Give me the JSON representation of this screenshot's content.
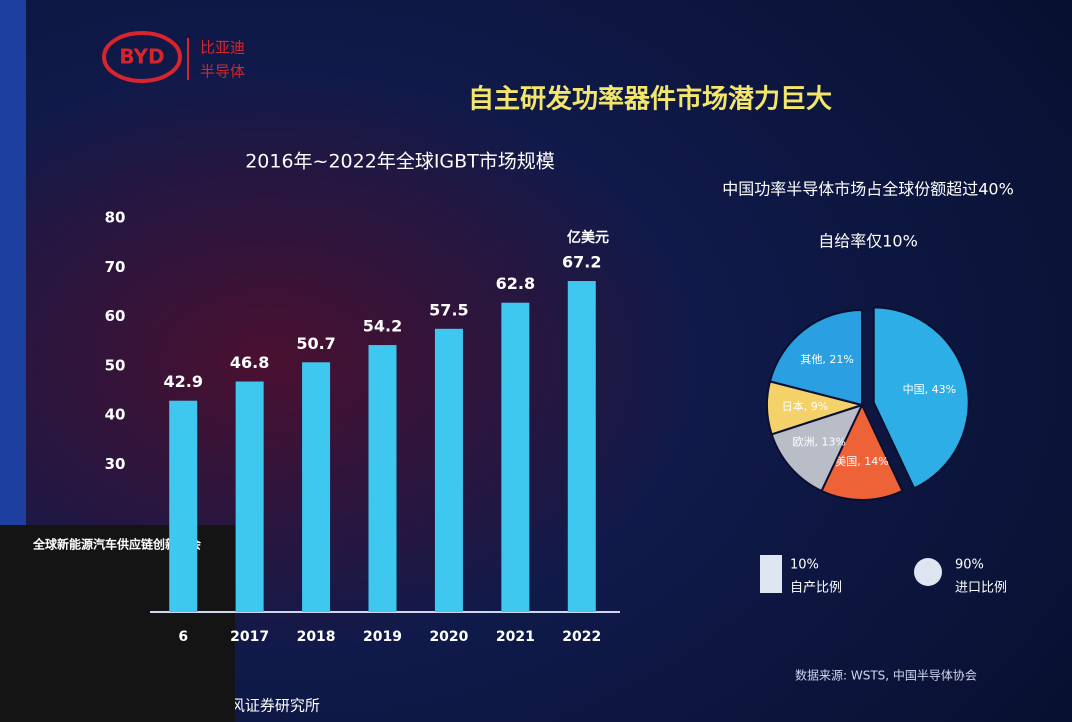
{
  "slide": {
    "title": "自主研发功率器件市场潜力巨大",
    "logo": "BYD",
    "brand_line1": "比亚迪",
    "brand_line2": "半导体",
    "podium": "全球新能源汽车供应链创新大会",
    "left_source": "源: 天风证券研究所",
    "right_source": "数据来源: WSTS, 中国半导体协会",
    "stats": [
      {
        "value": "10%",
        "label": "自产比例"
      },
      {
        "value": "90%",
        "label": "进口比例"
      }
    ]
  },
  "chart_data": [
    {
      "type": "bar",
      "title": "2016年~2022年全球IGBT市场规模",
      "unit": "亿美元",
      "categories": [
        "6",
        "2017",
        "2018",
        "2019",
        "2020",
        "2021",
        "2022"
      ],
      "values": [
        42.9,
        46.8,
        50.7,
        54.2,
        57.5,
        62.8,
        67.2
      ],
      "color": "#3ec8f0",
      "ylim": [
        0,
        80
      ],
      "yticks": [
        30,
        40,
        50,
        60,
        70,
        80
      ]
    },
    {
      "type": "pie",
      "title": "中国功率半导体市场占全球份额超过40%",
      "subtitle": "自给率仅10%",
      "values": [
        43,
        14,
        13,
        9,
        21
      ],
      "value_labels": [
        "中国, 43%",
        "美国, 14%",
        "欧洲, 13%",
        "日本, 9%",
        "其他, 21%"
      ],
      "colors": [
        "#2eaee6",
        "#ee6238",
        "#b8bdc8",
        "#f5d16a",
        "#2a9fe2"
      ]
    }
  ]
}
